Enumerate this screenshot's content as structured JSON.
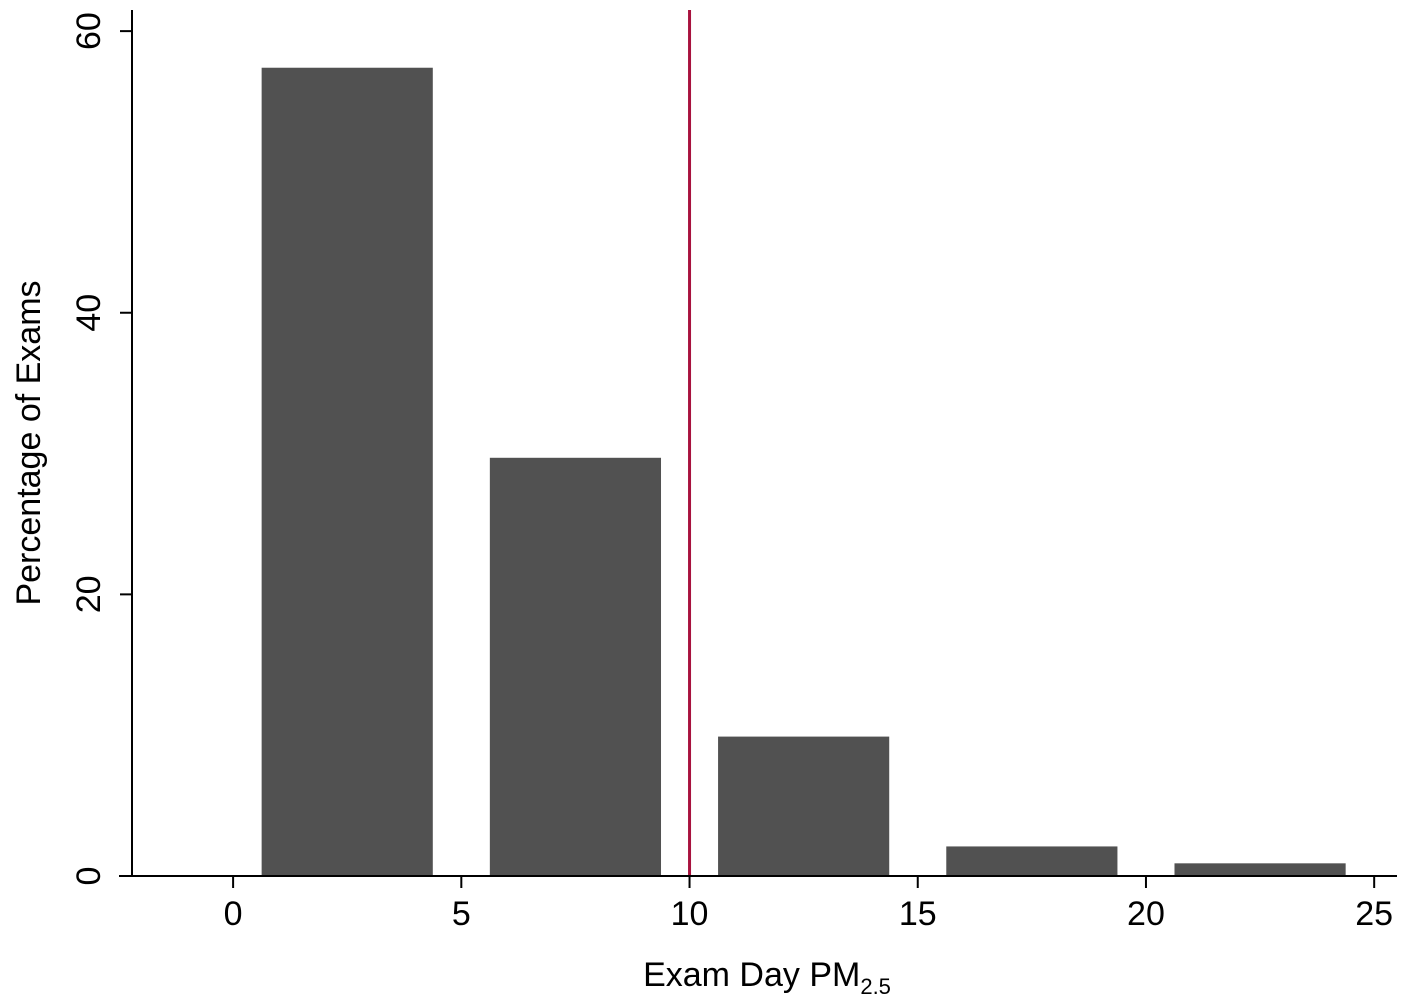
{
  "chart_data": {
    "type": "bar",
    "bins": [
      {
        "start": 0.625,
        "end": 4.375,
        "value": 57.4
      },
      {
        "start": 5.625,
        "end": 9.375,
        "value": 29.7
      },
      {
        "start": 10.625,
        "end": 14.375,
        "value": 9.9
      },
      {
        "start": 15.625,
        "end": 19.375,
        "value": 2.1
      },
      {
        "start": 20.625,
        "end": 24.375,
        "value": 0.9
      }
    ],
    "reference_line": {
      "x": 10,
      "color": "#a8123e"
    },
    "xlabel": "Exam Day PM",
    "xlabel_subscript": "2.5",
    "ylabel": "Percentage of Exams",
    "xlim": [
      -2.5,
      25.5
    ],
    "ylim": [
      0,
      61.5
    ],
    "xticks": [
      0,
      5,
      10,
      15,
      20,
      25
    ],
    "yticks": [
      0,
      20,
      40,
      60
    ],
    "bar_color": "#515151",
    "grid": false
  }
}
